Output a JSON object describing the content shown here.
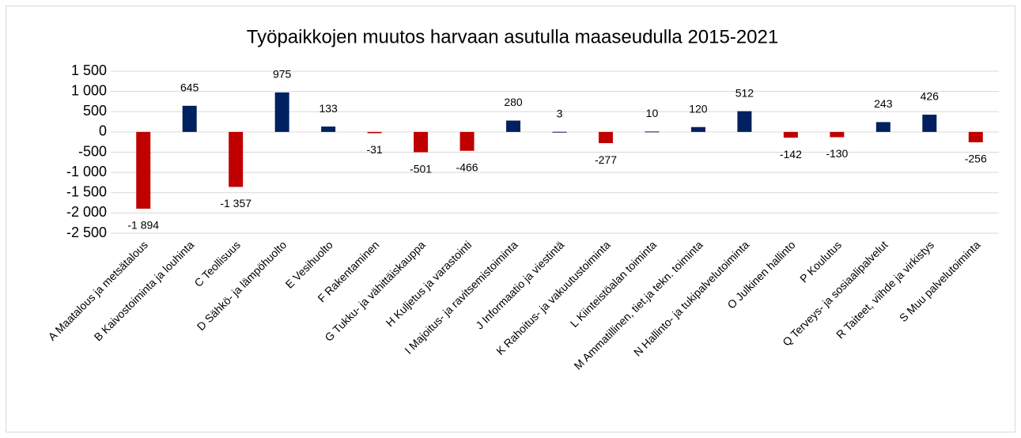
{
  "chart_data": {
    "type": "bar",
    "title": "Työpaikkojen muutos harvaan asutulla maaseudulla 2015-2021",
    "categories": [
      "A Maatalous ja metsätalous",
      "B Kaivostoiminta ja louhinta",
      "C Teollisuus",
      "D Sähkö- ja lämpöhuolto",
      "E Vesihuolto",
      "F Rakentaminen",
      "G Tukku- ja vähittäiskauppa",
      "H Kuljetus ja varastointi",
      "I Majoitus- ja ravitsemistoiminta",
      "J Informaatio ja viestintä",
      "K Rahoitus- ja vakuutustoiminta",
      "L Kiinteistöalan toiminta",
      "M Ammatillinen, tiet.ja tekn. toiminta",
      "N Hallinto- ja tukipalvelutoiminta",
      "O Julkinen hallinto",
      "P Koulutus",
      "Q Terveys- ja sosiaalipalvelut",
      "R Taiteet, viihde ja virkistys",
      "S Muu palvelutoiminta"
    ],
    "values": [
      -1894,
      645,
      -1357,
      975,
      133,
      -31,
      -501,
      -466,
      280,
      3,
      -277,
      10,
      120,
      512,
      -142,
      -130,
      243,
      426,
      -256
    ],
    "value_labels": [
      "-1 894",
      "645",
      "-1 357",
      "975",
      "133",
      "-31",
      "-501",
      "-466",
      "280",
      "3",
      "-277",
      "10",
      "120",
      "512",
      "-142",
      "-130",
      "243",
      "426",
      "-256"
    ],
    "color_positive": "#002060",
    "color_negative": "#c00000",
    "ylim": [
      -2500,
      1500
    ],
    "yticks": [
      {
        "value": -2500,
        "label": "-2 500"
      },
      {
        "value": -2000,
        "label": "-2 000"
      },
      {
        "value": -1500,
        "label": "-1 500"
      },
      {
        "value": -1000,
        "label": "-1 000"
      },
      -500,
      0,
      500,
      {
        "value": 1000,
        "label": "1 000"
      },
      {
        "value": 1500,
        "label": "1 500"
      }
    ],
    "grid": true
  }
}
